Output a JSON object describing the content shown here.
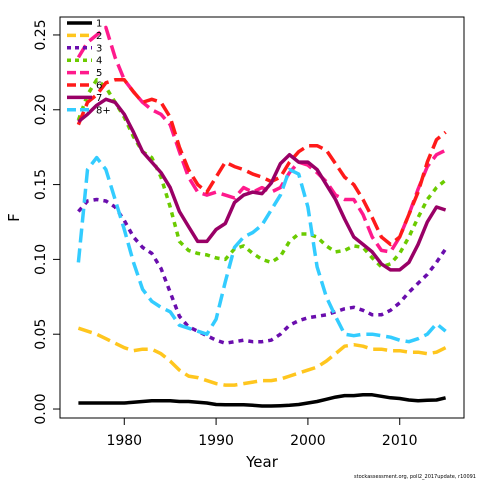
{
  "chart_data": {
    "type": "line",
    "xlabel": "Year",
    "ylabel": "F",
    "xlim": [
      1973,
      2017
    ],
    "ylim": [
      -0.006,
      0.262
    ],
    "xticks": [
      1980,
      1990,
      2000,
      2010
    ],
    "yticks": [
      0.0,
      0.05,
      0.1,
      0.15,
      0.2,
      0.25
    ],
    "ytick_labels": [
      "0.00",
      "0.05",
      "0.10",
      "0.15",
      "0.20",
      "0.25"
    ],
    "legend_position": "top-left",
    "grid": false,
    "footnote": "stockassessment.org, poll2_2017update, r10091",
    "series": [
      {
        "name": "1",
        "color": "#000000",
        "dash": "solid",
        "x": [
          1975,
          1976,
          1977,
          1978,
          1979,
          1980,
          1981,
          1982,
          1983,
          1984,
          1985,
          1986,
          1987,
          1988,
          1989,
          1990,
          1991,
          1992,
          1993,
          1994,
          1995,
          1996,
          1997,
          1998,
          1999,
          2000,
          2001,
          2002,
          2003,
          2004,
          2005,
          2006,
          2007,
          2008,
          2009,
          2010,
          2011,
          2012,
          2013,
          2014,
          2015
        ],
        "values": [
          0.004,
          0.004,
          0.004,
          0.004,
          0.004,
          0.004,
          0.0045,
          0.005,
          0.0055,
          0.0055,
          0.0055,
          0.005,
          0.005,
          0.0045,
          0.004,
          0.003,
          0.0028,
          0.0028,
          0.0028,
          0.0025,
          0.002,
          0.002,
          0.0022,
          0.0025,
          0.003,
          0.004,
          0.005,
          0.0065,
          0.008,
          0.009,
          0.009,
          0.0095,
          0.0095,
          0.0085,
          0.0075,
          0.007,
          0.006,
          0.0055,
          0.0058,
          0.006,
          0.0075
        ]
      },
      {
        "name": "2",
        "color": "#ffc61e",
        "dash": "long",
        "x": [
          1975,
          1976,
          1977,
          1978,
          1979,
          1980,
          1981,
          1982,
          1983,
          1984,
          1985,
          1986,
          1987,
          1988,
          1989,
          1990,
          1991,
          1992,
          1993,
          1994,
          1995,
          1996,
          1997,
          1998,
          1999,
          2000,
          2001,
          2002,
          2003,
          2004,
          2005,
          2006,
          2007,
          2008,
          2009,
          2010,
          2011,
          2012,
          2013,
          2014,
          2015
        ],
        "values": [
          0.054,
          0.052,
          0.05,
          0.047,
          0.044,
          0.041,
          0.039,
          0.04,
          0.04,
          0.037,
          0.032,
          0.026,
          0.022,
          0.021,
          0.019,
          0.017,
          0.016,
          0.016,
          0.017,
          0.018,
          0.019,
          0.019,
          0.02,
          0.022,
          0.024,
          0.026,
          0.028,
          0.032,
          0.037,
          0.042,
          0.043,
          0.042,
          0.04,
          0.04,
          0.039,
          0.039,
          0.038,
          0.038,
          0.037,
          0.038,
          0.041
        ]
      },
      {
        "name": "3",
        "color": "#6a0dad",
        "dash": "dot",
        "x": [
          1975,
          1976,
          1977,
          1978,
          1979,
          1980,
          1981,
          1982,
          1983,
          1984,
          1985,
          1986,
          1987,
          1988,
          1989,
          1990,
          1991,
          1992,
          1993,
          1994,
          1995,
          1996,
          1997,
          1998,
          1999,
          2000,
          2001,
          2002,
          2003,
          2004,
          2005,
          2006,
          2007,
          2008,
          2009,
          2010,
          2011,
          2012,
          2013,
          2014,
          2015
        ],
        "values": [
          0.132,
          0.139,
          0.14,
          0.139,
          0.135,
          0.126,
          0.115,
          0.108,
          0.104,
          0.094,
          0.078,
          0.062,
          0.055,
          0.052,
          0.049,
          0.046,
          0.044,
          0.045,
          0.046,
          0.045,
          0.045,
          0.046,
          0.05,
          0.056,
          0.059,
          0.061,
          0.062,
          0.063,
          0.065,
          0.067,
          0.068,
          0.066,
          0.063,
          0.063,
          0.066,
          0.071,
          0.078,
          0.084,
          0.09,
          0.098,
          0.107
        ]
      },
      {
        "name": "4",
        "color": "#6bcb00",
        "dash": "dot",
        "x": [
          1975,
          1976,
          1977,
          1978,
          1979,
          1980,
          1981,
          1982,
          1983,
          1984,
          1985,
          1986,
          1987,
          1988,
          1989,
          1990,
          1991,
          1992,
          1993,
          1994,
          1995,
          1996,
          1997,
          1998,
          1999,
          2000,
          2001,
          2002,
          2003,
          2004,
          2005,
          2006,
          2007,
          2008,
          2009,
          2010,
          2011,
          2012,
          2013,
          2014,
          2015
        ],
        "values": [
          0.193,
          0.21,
          0.22,
          0.215,
          0.205,
          0.195,
          0.182,
          0.172,
          0.168,
          0.155,
          0.135,
          0.112,
          0.106,
          0.104,
          0.103,
          0.101,
          0.1,
          0.107,
          0.109,
          0.104,
          0.1,
          0.098,
          0.102,
          0.112,
          0.117,
          0.117,
          0.115,
          0.109,
          0.105,
          0.106,
          0.109,
          0.108,
          0.101,
          0.095,
          0.097,
          0.104,
          0.115,
          0.128,
          0.14,
          0.148,
          0.153
        ]
      },
      {
        "name": "5",
        "color": "#ff1a8c",
        "dash": "long",
        "x": [
          1975,
          1976,
          1977,
          1978,
          1979,
          1980,
          1981,
          1982,
          1983,
          1984,
          1985,
          1986,
          1987,
          1988,
          1989,
          1990,
          1991,
          1992,
          1993,
          1994,
          1995,
          1996,
          1997,
          1998,
          1999,
          2000,
          2001,
          2002,
          2003,
          2004,
          2005,
          2006,
          2007,
          2008,
          2009,
          2010,
          2011,
          2012,
          2013,
          2014,
          2015
        ],
        "values": [
          0.235,
          0.245,
          0.25,
          0.255,
          0.235,
          0.22,
          0.212,
          0.205,
          0.2,
          0.197,
          0.19,
          0.172,
          0.155,
          0.145,
          0.143,
          0.145,
          0.143,
          0.141,
          0.148,
          0.145,
          0.148,
          0.145,
          0.148,
          0.158,
          0.165,
          0.163,
          0.158,
          0.152,
          0.143,
          0.14,
          0.14,
          0.13,
          0.115,
          0.106,
          0.105,
          0.115,
          0.13,
          0.147,
          0.162,
          0.17,
          0.173
        ]
      },
      {
        "name": "6",
        "color": "#ff1a1a",
        "dash": "long",
        "x": [
          1975,
          1976,
          1977,
          1978,
          1979,
          1980,
          1981,
          1982,
          1983,
          1984,
          1985,
          1986,
          1987,
          1988,
          1989,
          1990,
          1991,
          1992,
          1993,
          1994,
          1995,
          1996,
          1997,
          1998,
          1999,
          2000,
          2001,
          2002,
          2003,
          2004,
          2005,
          2006,
          2007,
          2008,
          2009,
          2010,
          2011,
          2012,
          2013,
          2014,
          2015
        ],
        "values": [
          0.19,
          0.205,
          0.21,
          0.218,
          0.22,
          0.22,
          0.212,
          0.205,
          0.207,
          0.205,
          0.195,
          0.175,
          0.16,
          0.15,
          0.145,
          0.155,
          0.165,
          0.162,
          0.16,
          0.157,
          0.155,
          0.152,
          0.155,
          0.165,
          0.172,
          0.176,
          0.176,
          0.173,
          0.164,
          0.155,
          0.15,
          0.14,
          0.128,
          0.115,
          0.11,
          0.115,
          0.13,
          0.145,
          0.165,
          0.18,
          0.185
        ]
      },
      {
        "name": "7",
        "color": "#990066",
        "dash": "solid",
        "x": [
          1975,
          1976,
          1977,
          1978,
          1979,
          1980,
          1981,
          1982,
          1983,
          1984,
          1985,
          1986,
          1987,
          1988,
          1989,
          1990,
          1991,
          1992,
          1993,
          1994,
          1995,
          1996,
          1997,
          1998,
          1999,
          2000,
          2001,
          2002,
          2003,
          2004,
          2005,
          2006,
          2007,
          2008,
          2009,
          2010,
          2011,
          2012,
          2013,
          2014,
          2015
        ],
        "values": [
          0.192,
          0.197,
          0.203,
          0.207,
          0.205,
          0.197,
          0.185,
          0.172,
          0.165,
          0.158,
          0.148,
          0.132,
          0.122,
          0.112,
          0.112,
          0.12,
          0.124,
          0.138,
          0.143,
          0.145,
          0.144,
          0.151,
          0.164,
          0.17,
          0.165,
          0.165,
          0.16,
          0.15,
          0.14,
          0.127,
          0.115,
          0.11,
          0.105,
          0.097,
          0.093,
          0.093,
          0.098,
          0.11,
          0.125,
          0.135,
          0.133
        ]
      },
      {
        "name": "8+",
        "color": "#33ccff",
        "dash": "long",
        "x": [
          1975,
          1976,
          1977,
          1978,
          1979,
          1980,
          1981,
          1982,
          1983,
          1984,
          1985,
          1986,
          1987,
          1988,
          1989,
          1990,
          1991,
          1992,
          1993,
          1994,
          1995,
          1996,
          1997,
          1998,
          1999,
          2000,
          2001,
          2002,
          2003,
          2004,
          2005,
          2006,
          2007,
          2008,
          2009,
          2010,
          2011,
          2012,
          2013,
          2014,
          2015
        ],
        "values": [
          0.098,
          0.16,
          0.168,
          0.16,
          0.14,
          0.12,
          0.098,
          0.08,
          0.072,
          0.068,
          0.065,
          0.056,
          0.054,
          0.052,
          0.05,
          0.06,
          0.085,
          0.108,
          0.115,
          0.118,
          0.123,
          0.133,
          0.143,
          0.16,
          0.157,
          0.135,
          0.095,
          0.075,
          0.062,
          0.05,
          0.049,
          0.05,
          0.05,
          0.049,
          0.048,
          0.046,
          0.045,
          0.047,
          0.05,
          0.057,
          0.052
        ]
      }
    ]
  }
}
